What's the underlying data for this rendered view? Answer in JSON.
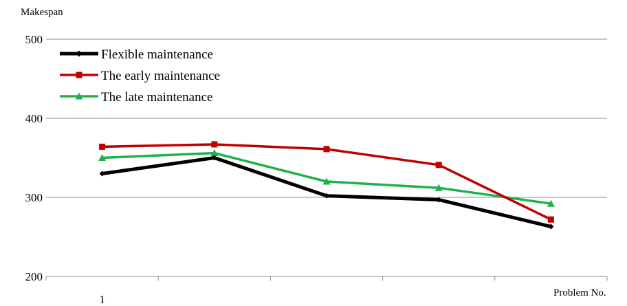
{
  "chart_data": {
    "type": "line",
    "ylabel": "Makespan",
    "xlabel": "Problem No.",
    "ylim": [
      200,
      500
    ],
    "yticks": [
      200,
      300,
      400,
      500
    ],
    "x_tick_labels": [
      "1"
    ],
    "grid": true,
    "legend_position": "top-left",
    "series": [
      {
        "name": "Flexible maintenance",
        "color": "#000000",
        "marker": "diamond",
        "values": [
          330,
          350,
          302,
          297,
          263
        ]
      },
      {
        "name": "The early maintenance",
        "color": "#c00000",
        "marker": "square",
        "values": [
          364,
          367,
          361,
          341,
          272
        ]
      },
      {
        "name": "The late maintenance",
        "color": "#1fb14c",
        "marker": "triangle",
        "values": [
          350,
          356,
          320,
          312,
          292
        ]
      }
    ]
  }
}
